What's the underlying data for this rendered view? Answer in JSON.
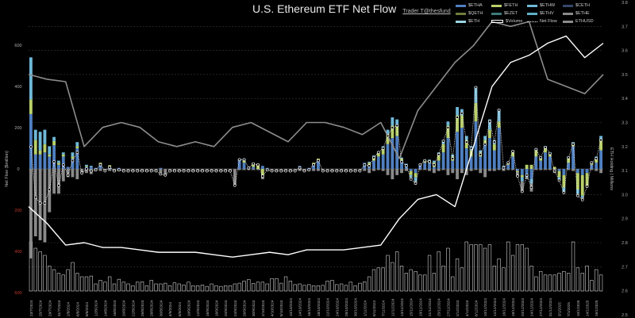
{
  "header": {
    "title": "U.S. Ethereum ETF Net Flow",
    "credit": "Trader T@thesfund"
  },
  "legend": [
    {
      "label": "$ETHA",
      "color": "#4f7fc0",
      "kind": "bar"
    },
    {
      "label": "$FETH",
      "color": "#b9d06a",
      "kind": "bar"
    },
    {
      "label": "$ETHW",
      "color": "#6fb8d8",
      "kind": "bar"
    },
    {
      "label": "$CETH",
      "color": "#34486a",
      "kind": "bar"
    },
    {
      "label": "$QETH",
      "color": "#6e7d3c",
      "kind": "bar"
    },
    {
      "label": "$EZET",
      "color": "#3d7a7a",
      "kind": "bar"
    },
    {
      "label": "$ETHV",
      "color": "#5fb0c8",
      "kind": "bar"
    },
    {
      "label": "$ETHE",
      "color": "#8a8a8a",
      "kind": "bar"
    },
    {
      "label": "$ETH",
      "color": "#9ad4e0",
      "kind": "bar"
    },
    {
      "label": "$Volume",
      "color": "#ffffff",
      "kind": "outline"
    },
    {
      "label": "Net Flow",
      "color": "#ffffff",
      "kind": "dots"
    },
    {
      "label": "ETHUSD",
      "color": "#8c8c8c",
      "kind": "line"
    }
  ],
  "chart_data": {
    "type": "bar",
    "title": "U.S. Ethereum ETF Net Flow",
    "ylabel": "Net Flow ($million)",
    "y2label": "ETH Holding | Millions",
    "ylim": [
      -600,
      600
    ],
    "y2lim": [
      2.5,
      3.8
    ],
    "yticks": [
      {
        "label": "600",
        "value": 600,
        "negative": false
      },
      {
        "label": "400",
        "value": 400,
        "negative": false
      },
      {
        "label": "200",
        "value": 200,
        "negative": false
      },
      {
        "label": "0",
        "value": 0,
        "negative": false
      },
      {
        "label": "200",
        "value": -200,
        "negative": true
      },
      {
        "label": "400",
        "value": -400,
        "negative": true
      },
      {
        "label": "600",
        "value": -600,
        "negative": true
      }
    ],
    "y2ticks": [
      "3.8",
      "3.7",
      "3.6",
      "3.5",
      "3.4",
      "3.3",
      "3.2",
      "3.1",
      "3.0",
      "2.9",
      "2.8",
      "2.7",
      "2.6",
      "2.5"
    ],
    "grid": true,
    "legend_position": "top-right",
    "n_days": 124,
    "xtick_every": 2,
    "xticks": [
      "23/7/2024",
      "25/7/2024",
      "29/7/2024",
      "31/7/2024",
      "2/8/2024",
      "6/8/2024",
      "8/8/2024",
      "12/8/2024",
      "14/8/2024",
      "16/8/2024",
      "20/8/2024",
      "22/8/2024",
      "26/8/2024",
      "28/8/2024",
      "30/8/2024",
      "4/9/2024",
      "6/9/2024",
      "10/9/2024",
      "12/9/2024",
      "16/9/2024",
      "18/9/2024",
      "20/9/2024",
      "24/9/2024",
      "26/9/2024",
      "30/9/2024",
      "2/10/2024",
      "4/10/2024",
      "8/10/2024",
      "10/10/2024",
      "14/10/2024",
      "16/10/2024",
      "18/10/2024",
      "22/10/2024",
      "24/10/2024",
      "28/10/2024",
      "30/10/2024",
      "1/11/2024",
      "5/11/2024",
      "7/11/2024",
      "11/11/2024",
      "13/11/2024",
      "15/11/2024",
      "19/11/2024",
      "21/11/2024",
      "25/11/2024",
      "27/11/2024",
      "2/12/2024",
      "4/12/2024",
      "6/12/2024",
      "10/12/2024",
      "12/12/2024",
      "16/12/2024",
      "18/12/2024",
      "20/12/2024",
      "24/12/2024",
      "27/12/2024",
      "31/12/2024",
      "3/1/2025",
      "7/1/2025",
      "10/1/2025",
      "14/1/2025",
      "16/1/2025"
    ],
    "series": [
      {
        "name": "$ETHA",
        "color": "#4f7fc0",
        "values": [
          266,
          70,
          70,
          80,
          60,
          115,
          20,
          60,
          10,
          50,
          100,
          0,
          10,
          10,
          5,
          20,
          0,
          10,
          0,
          5,
          0,
          0,
          0,
          0,
          0,
          0,
          0,
          0,
          5,
          0,
          0,
          0,
          0,
          0,
          0,
          0,
          0,
          0,
          0,
          0,
          0,
          0,
          0,
          0,
          0,
          40,
          30,
          10,
          10,
          0,
          15,
          5,
          0,
          0,
          0,
          0,
          0,
          0,
          15,
          0,
          5,
          20,
          40,
          0,
          0,
          0,
          0,
          0,
          0,
          0,
          0,
          0,
          30,
          20,
          40,
          60,
          70,
          120,
          150,
          160,
          40,
          20,
          -10,
          -20,
          20,
          30,
          30,
          10,
          40,
          80,
          150,
          40,
          180,
          200,
          100,
          60,
          230,
          60,
          120,
          150,
          90,
          200,
          10,
          20,
          60,
          -10,
          -30,
          -30,
          -50,
          60,
          40,
          80,
          60,
          0,
          -10,
          -30,
          30,
          110,
          -20,
          -30,
          -20,
          20,
          30,
          90
        ]
      },
      {
        "name": "$FETH",
        "color": "#b9d06a",
        "values": [
          71,
          70,
          20,
          40,
          10,
          20,
          10,
          10,
          0,
          10,
          10,
          0,
          5,
          0,
          0,
          10,
          0,
          8,
          0,
          0,
          0,
          0,
          0,
          0,
          0,
          0,
          0,
          0,
          0,
          0,
          0,
          0,
          0,
          0,
          0,
          0,
          0,
          0,
          0,
          0,
          0,
          0,
          0,
          0,
          0,
          0,
          10,
          0,
          20,
          25,
          -30,
          0,
          0,
          0,
          0,
          0,
          0,
          0,
          0,
          0,
          0,
          10,
          10,
          0,
          0,
          0,
          0,
          0,
          0,
          0,
          0,
          0,
          0,
          10,
          20,
          20,
          30,
          50,
          60,
          50,
          10,
          0,
          -20,
          -20,
          0,
          10,
          10,
          20,
          30,
          40,
          60,
          20,
          80,
          60,
          40,
          30,
          90,
          20,
          20,
          40,
          30,
          30,
          0,
          10,
          20,
          -5,
          -10,
          20,
          20,
          30,
          10,
          20,
          10,
          10,
          -30,
          -60,
          20,
          10,
          -80,
          -100,
          -60,
          10,
          20,
          50
        ]
      },
      {
        "name": "$ETHW",
        "color": "#6fb8d8",
        "values": [
          204,
          50,
          90,
          70,
          40,
          20,
          10,
          10,
          0,
          20,
          20,
          0,
          5,
          5,
          0,
          0,
          0,
          0,
          0,
          0,
          0,
          0,
          0,
          0,
          0,
          0,
          0,
          0,
          0,
          0,
          0,
          0,
          0,
          0,
          0,
          0,
          0,
          0,
          0,
          0,
          0,
          0,
          0,
          0,
          0,
          10,
          10,
          0,
          0,
          0,
          0,
          0,
          0,
          0,
          0,
          0,
          0,
          0,
          0,
          0,
          0,
          0,
          0,
          0,
          0,
          0,
          0,
          0,
          0,
          0,
          0,
          0,
          0,
          5,
          5,
          5,
          10,
          20,
          40,
          30,
          5,
          5,
          -10,
          -20,
          5,
          5,
          5,
          10,
          10,
          20,
          20,
          10,
          40,
          30,
          20,
          20,
          80,
          10,
          20,
          50,
          20,
          60,
          5,
          5,
          10,
          0,
          -20,
          -10,
          -20,
          10,
          10,
          10,
          10,
          0,
          -10,
          -20,
          10,
          10,
          -20,
          -10,
          0,
          5,
          10,
          20
        ]
      },
      {
        "name": "$ETHE",
        "color": "#8a8a8a",
        "values": [
          -434,
          -327,
          -346,
          -356,
          -210,
          -120,
          -120,
          -60,
          -40,
          -40,
          -50,
          -20,
          -20,
          -25,
          -10,
          -10,
          -10,
          -10,
          -10,
          -10,
          -10,
          -10,
          -10,
          -10,
          -10,
          -10,
          -10,
          -10,
          -30,
          -30,
          -10,
          -10,
          -10,
          -10,
          -10,
          -10,
          -10,
          -10,
          -10,
          -10,
          -10,
          -10,
          -10,
          -10,
          -80,
          -5,
          -5,
          -5,
          -5,
          -5,
          -20,
          -10,
          -10,
          -10,
          -10,
          -10,
          -10,
          -10,
          -10,
          -10,
          -10,
          -10,
          -10,
          -10,
          -10,
          -10,
          -10,
          -10,
          -10,
          -10,
          -10,
          -10,
          -10,
          -20,
          -10,
          -5,
          -10,
          -30,
          -50,
          -30,
          -20,
          -10,
          -10,
          -10,
          -5,
          -5,
          -10,
          -20,
          -10,
          -5,
          -30,
          -20,
          -50,
          -20,
          -30,
          -10,
          -5,
          -20,
          -40,
          -10,
          -10,
          -5,
          -10,
          -5,
          -5,
          -20,
          -50,
          -10,
          -40,
          -5,
          -5,
          -5,
          -5,
          -20,
          -5,
          -5,
          -5,
          -10,
          -10,
          -10,
          -5,
          -5,
          -10,
          -20
        ]
      }
    ],
    "volume": {
      "name": "$Volume",
      "unit": "$million",
      "values": [
        2500,
        1200,
        1100,
        1000,
        700,
        600,
        500,
        450,
        600,
        800,
        500,
        400,
        400,
        420,
        200,
        300,
        250,
        400,
        200,
        330,
        250,
        200,
        150,
        250,
        260,
        150,
        300,
        200,
        200,
        220,
        150,
        230,
        200,
        170,
        250,
        150,
        150,
        170,
        130,
        200,
        150,
        130,
        150,
        150,
        200,
        220,
        280,
        320,
        210,
        250,
        250,
        200,
        350,
        350,
        220,
        400,
        280,
        180,
        200,
        160,
        180,
        150,
        150,
        160,
        280,
        300,
        180,
        200,
        160,
        250,
        150,
        220,
        260,
        400,
        600,
        650,
        650,
        1000,
        800,
        1100,
        700,
        500,
        600,
        550,
        450,
        450,
        1000,
        500,
        1100,
        700,
        1200,
        400,
        900,
        650,
        1400,
        1300,
        1300,
        1300,
        1200,
        1300,
        700,
        900,
        650,
        1400,
        1000,
        1300,
        1300,
        1200,
        700,
        400,
        550,
        450,
        450,
        450,
        500,
        550,
        500,
        1400,
        650,
        500,
        700,
        300,
        600,
        450
      ]
    },
    "eth_holdings_millions": {
      "name": "ETH Holding",
      "color": "#ffffff",
      "values": [
        2.95,
        2.88,
        2.79,
        2.8,
        2.78,
        2.78,
        2.77,
        2.76,
        2.76,
        2.76,
        2.75,
        2.74,
        2.75,
        2.76,
        2.75,
        2.77,
        2.77,
        2.77,
        2.78,
        2.79,
        2.9,
        2.98,
        3.0,
        2.95,
        3.2,
        3.45,
        3.55,
        3.58,
        3.63,
        3.66,
        3.57,
        3.63
      ]
    },
    "ethusd_thousands": {
      "name": "ETHUSD",
      "color": "#8c8c8c",
      "values": [
        3.5,
        3.48,
        3.47,
        3.2,
        3.28,
        3.3,
        3.28,
        3.22,
        3.2,
        3.22,
        3.2,
        3.28,
        3.3,
        3.26,
        3.22,
        3.3,
        3.3,
        3.28,
        3.25,
        3.3,
        3.15,
        3.35,
        3.45,
        3.55,
        3.62,
        3.72,
        3.7,
        3.72,
        3.48,
        3.45,
        3.42,
        3.5
      ]
    }
  }
}
